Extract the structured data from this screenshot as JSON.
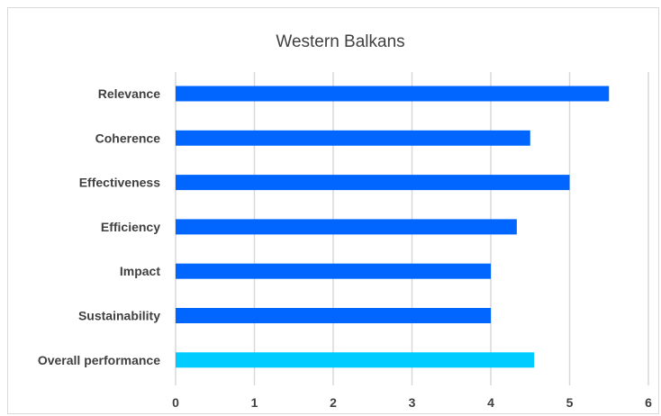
{
  "chart_data": {
    "type": "bar",
    "orientation": "horizontal",
    "title": "Western Balkans",
    "categories": [
      "Relevance",
      "Coherence",
      "Effectiveness",
      "Efficiency",
      "Impact",
      "Sustainability",
      "Overall performance"
    ],
    "values": [
      5.5,
      4.5,
      5.0,
      4.33,
      4.0,
      4.0,
      4.55
    ],
    "colors": [
      "#0066ff",
      "#0066ff",
      "#0066ff",
      "#0066ff",
      "#0066ff",
      "#0066ff",
      "#00ccff"
    ],
    "xlim": [
      0,
      6
    ],
    "xticks": [
      "0",
      "1",
      "2",
      "3",
      "4",
      "5",
      "6"
    ],
    "grid": "vertical",
    "legend": "none",
    "xlabel": "",
    "ylabel": ""
  }
}
